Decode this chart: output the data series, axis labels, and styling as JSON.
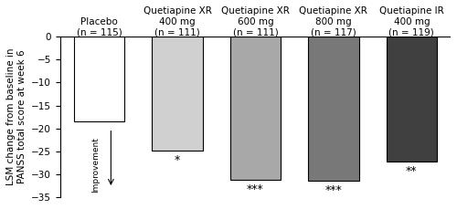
{
  "categories": [
    "Placebo\n(n = 115)",
    "Quetiapine XR\n400 mg\n(n = 111)",
    "Quetiapine XR\n600 mg\n(n = 111)",
    "Quetiapine XR\n800 mg\n(n = 117)",
    "Quetiapine IR\n400 mg\n(n = 119)"
  ],
  "values": [
    -18.5,
    -24.8,
    -31.2,
    -31.5,
    -27.2
  ],
  "bar_colors": [
    "#ffffff",
    "#d0d0d0",
    "#a8a8a8",
    "#787878",
    "#404040"
  ],
  "bar_edgecolors": [
    "#000000",
    "#000000",
    "#000000",
    "#000000",
    "#000000"
  ],
  "significance": [
    "",
    "*",
    "***",
    "***",
    "**"
  ],
  "ylabel": "LSM change from baseline in\nPANSS total score at week 6",
  "improvement_label": "Improvement",
  "ylim": [
    -35,
    0
  ],
  "yticks": [
    0,
    -5,
    -10,
    -15,
    -20,
    -25,
    -30,
    -35
  ],
  "background_color": "#ffffff",
  "label_fontsize": 7.5,
  "tick_fontsize": 7.5,
  "sig_fontsize": 9
}
